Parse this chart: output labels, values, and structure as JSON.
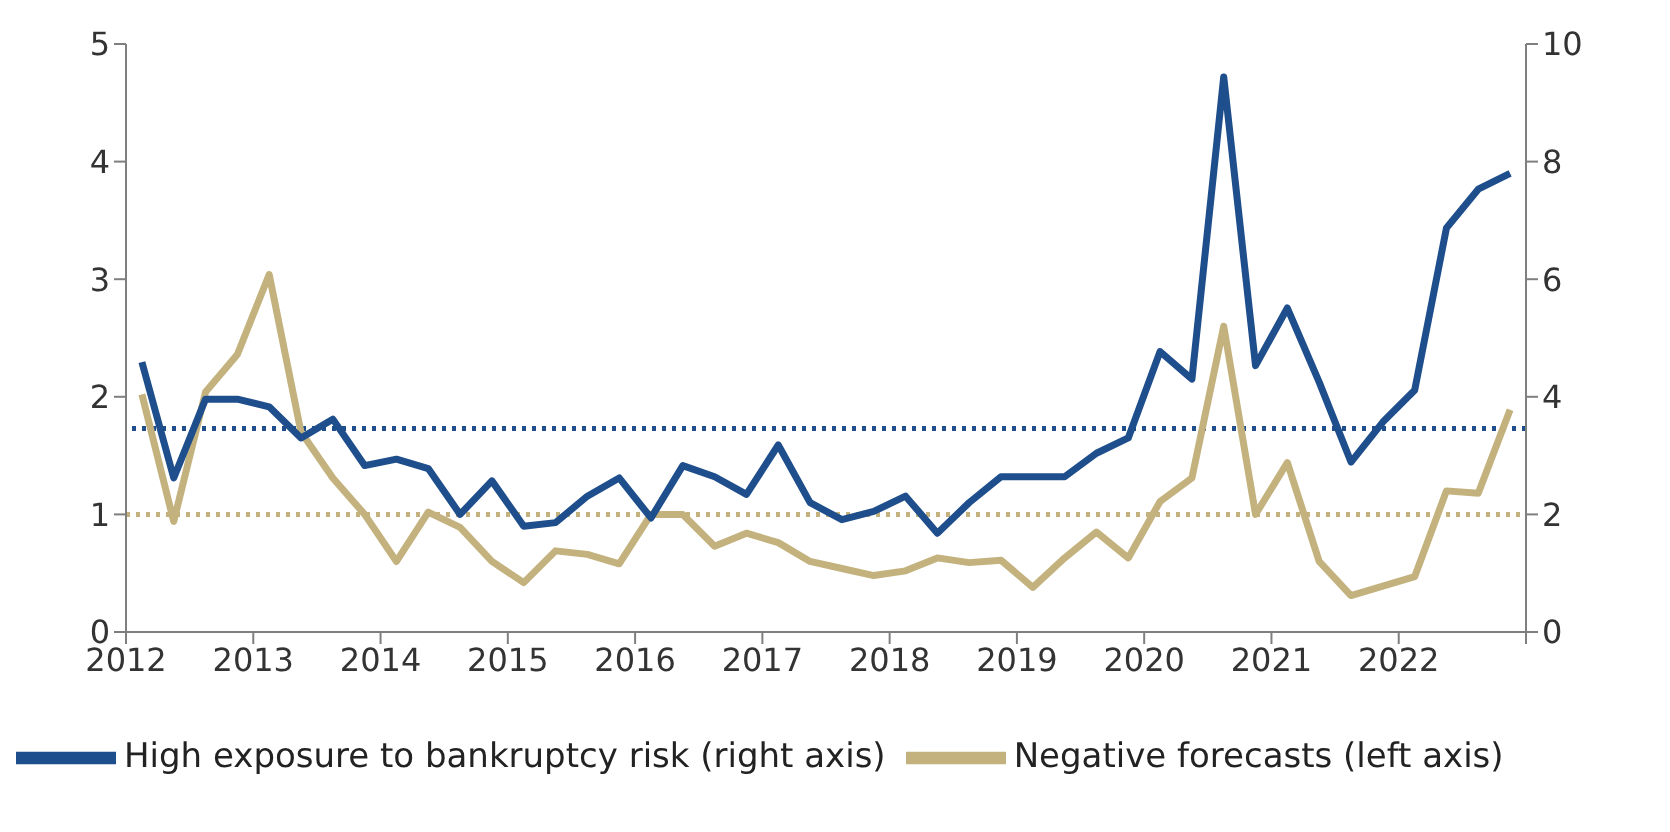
{
  "chart_data": {
    "type": "line",
    "x": [
      2012.125,
      2012.375,
      2012.625,
      2012.875,
      2013.125,
      2013.375,
      2013.625,
      2013.875,
      2014.125,
      2014.375,
      2014.625,
      2014.875,
      2015.125,
      2015.375,
      2015.625,
      2015.875,
      2016.125,
      2016.375,
      2016.625,
      2016.875,
      2017.125,
      2017.375,
      2017.625,
      2017.875,
      2018.125,
      2018.375,
      2018.625,
      2018.875,
      2019.125,
      2019.375,
      2019.625,
      2019.875,
      2020.125,
      2020.375,
      2020.625,
      2020.875,
      2021.125,
      2021.375,
      2021.625,
      2021.875,
      2022.125,
      2022.375,
      2022.625,
      2022.875
    ],
    "series": [
      {
        "name": "Negative forecasts (left axis)",
        "color": "#c4b27e",
        "values": [
          2.02,
          0.94,
          2.04,
          2.36,
          3.04,
          1.7,
          1.31,
          1.0,
          0.6,
          1.02,
          0.89,
          0.6,
          0.42,
          0.69,
          0.66,
          0.58,
          1.0,
          1.0,
          0.73,
          0.84,
          0.76,
          0.6,
          0.54,
          0.48,
          0.52,
          0.63,
          0.59,
          0.61,
          0.38,
          0.63,
          0.85,
          0.63,
          1.11,
          1.31,
          2.6,
          1.0,
          1.44,
          0.6,
          0.31,
          0.39,
          0.47,
          1.2,
          1.18,
          1.89
        ]
      },
      {
        "name": "High exposure to bankruptcy risk (right axis)",
        "color": "#1f4e8c",
        "axis": "y2",
        "values": [
          4.59,
          2.62,
          3.96,
          3.96,
          3.83,
          3.3,
          3.62,
          2.83,
          2.94,
          2.78,
          2.0,
          2.57,
          1.8,
          1.86,
          2.31,
          2.62,
          1.94,
          2.83,
          2.64,
          2.34,
          3.18,
          2.2,
          1.91,
          2.05,
          2.31,
          1.68,
          2.2,
          2.64,
          2.64,
          2.64,
          3.04,
          3.3,
          4.77,
          4.3,
          9.44,
          4.53,
          5.51,
          4.25,
          2.89,
          3.57,
          4.11,
          6.87,
          7.53,
          7.8
        ]
      }
    ],
    "xlim": [
      2012,
      2023
    ],
    "xticks": [
      2012,
      2013,
      2014,
      2015,
      2016,
      2017,
      2018,
      2019,
      2020,
      2021,
      2022,
      {
        "value": 2023,
        "label": null
      }
    ],
    "ylim": [
      0,
      5
    ],
    "yticks": [
      0,
      1,
      2,
      3,
      4,
      5
    ],
    "y2lim": [
      0,
      10
    ],
    "y2ticks": [
      0,
      2,
      4,
      6,
      8,
      10
    ],
    "ref_lines": [
      {
        "axis": "y",
        "value": 1,
        "color": "#c4b27e",
        "line_style": "dotted"
      },
      {
        "axis": "y2",
        "value": 3.46,
        "color": "#1f4e8c",
        "line_style": "dotted"
      }
    ],
    "grid": false,
    "legend": "bottom",
    "marker": "none",
    "line_style": "solid"
  }
}
